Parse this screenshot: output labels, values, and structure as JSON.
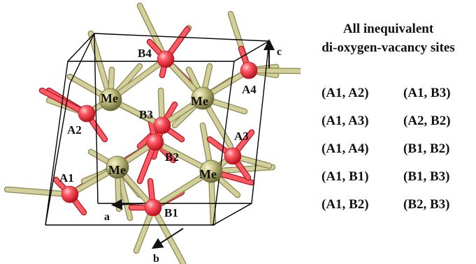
{
  "figure": {
    "title_line1": "All inequivalent",
    "title_line2": "di-oxygen-vacancy sites",
    "pairs": [
      "(A1, A2)",
      "(A1, B3)",
      "(A1, A3)",
      "(A2, B2)",
      "(A1, A4)",
      "(B1, B2)",
      "(A1, B1)",
      "(B1, B3)",
      "(A1, B2)",
      "(B2, B3)"
    ],
    "site_labels": {
      "a1": "A1",
      "a2": "A2",
      "a3": "A3",
      "a4": "A4",
      "b1": "B1",
      "b2": "B2",
      "b3": "B3",
      "b4": "B4"
    },
    "metal_label": "Me",
    "axes": {
      "a": "a",
      "b": "b",
      "c": "c"
    },
    "colors": {
      "oxygen": "#ff5a64",
      "oxygen_dark": "#b8101c",
      "metal": "#c7c483",
      "metal_dark": "#6b6838",
      "bond_olive": "#d2cf9a",
      "cell_edge": "#000000"
    }
  }
}
